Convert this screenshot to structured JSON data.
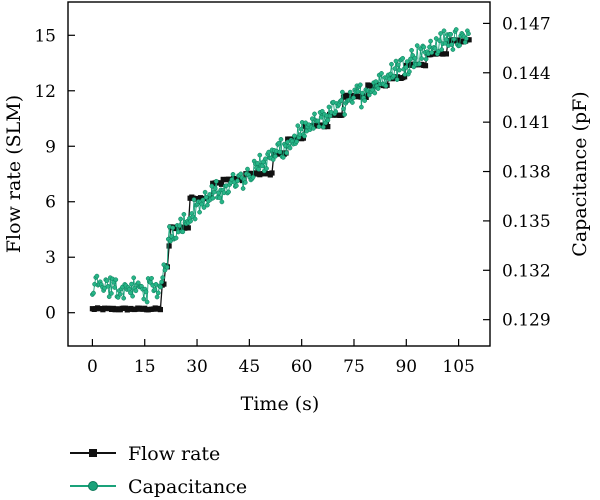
{
  "chart_data": {
    "type": "line",
    "title": "",
    "xlabel": "Time (s)",
    "ylabel": "Flow rate (SLM)",
    "y2label": "Capacitance (pF)",
    "xlim": [
      -7,
      114
    ],
    "ylim": [
      -1.8,
      16.8
    ],
    "y2lim": [
      0.1274,
      0.1483
    ],
    "xticks": [
      0,
      15,
      30,
      45,
      60,
      75,
      90,
      105
    ],
    "yticks": [
      0,
      3,
      6,
      9,
      12,
      15
    ],
    "y2ticks": [
      0.129,
      0.132,
      0.135,
      0.138,
      0.141,
      0.144,
      0.147
    ],
    "y2tick_labels": [
      "0.129",
      "0.132",
      "0.135",
      "0.138",
      "0.141",
      "0.144",
      "0.147"
    ],
    "grid": false,
    "legend_position": "bottom-left",
    "series": [
      {
        "name": "Flow rate",
        "axis": "left",
        "color": "#111111",
        "marker": "square",
        "steps": [
          {
            "t0": 0,
            "t1": 20,
            "v": 0.2
          },
          {
            "t0": 20,
            "t1": 20.8,
            "v": 1.5
          },
          {
            "t0": 20.8,
            "t1": 21.6,
            "v": 2.5
          },
          {
            "t0": 21.6,
            "t1": 22.3,
            "v": 3.6
          },
          {
            "t0": 22.3,
            "t1": 28,
            "v": 4.6
          },
          {
            "t0": 28,
            "t1": 34.5,
            "v": 6.2
          },
          {
            "t0": 34.5,
            "t1": 37.5,
            "v": 7.0
          },
          {
            "t0": 37.5,
            "t1": 44,
            "v": 7.2
          },
          {
            "t0": 44,
            "t1": 52,
            "v": 7.5
          },
          {
            "t0": 52,
            "t1": 56,
            "v": 8.6
          },
          {
            "t0": 56,
            "t1": 61,
            "v": 9.4
          },
          {
            "t0": 61,
            "t1": 68,
            "v": 10.1
          },
          {
            "t0": 68,
            "t1": 72,
            "v": 10.7
          },
          {
            "t0": 72,
            "t1": 79,
            "v": 11.7
          },
          {
            "t0": 79,
            "t1": 85,
            "v": 12.3
          },
          {
            "t0": 85,
            "t1": 90,
            "v": 12.7
          },
          {
            "t0": 90,
            "t1": 96,
            "v": 13.4
          },
          {
            "t0": 96,
            "t1": 102,
            "v": 14.0
          },
          {
            "t0": 102,
            "t1": 108,
            "v": 14.7
          }
        ]
      },
      {
        "name": "Capacitance",
        "axis": "right",
        "color": "#1aa27a",
        "marker": "circle",
        "trend": [
          {
            "t": 0,
            "v": 0.131
          },
          {
            "t": 19,
            "v": 0.1308
          },
          {
            "t": 21,
            "v": 0.132
          },
          {
            "t": 22,
            "v": 0.1342
          },
          {
            "t": 27,
            "v": 0.1351
          },
          {
            "t": 30,
            "v": 0.1359
          },
          {
            "t": 40,
            "v": 0.1372
          },
          {
            "t": 50,
            "v": 0.1387
          },
          {
            "t": 60,
            "v": 0.1402
          },
          {
            "t": 70,
            "v": 0.1419
          },
          {
            "t": 80,
            "v": 0.1431
          },
          {
            "t": 90,
            "v": 0.1447
          },
          {
            "t": 100,
            "v": 0.1458
          },
          {
            "t": 108,
            "v": 0.1465
          }
        ],
        "noise_amplitude": 0.00085
      }
    ]
  }
}
